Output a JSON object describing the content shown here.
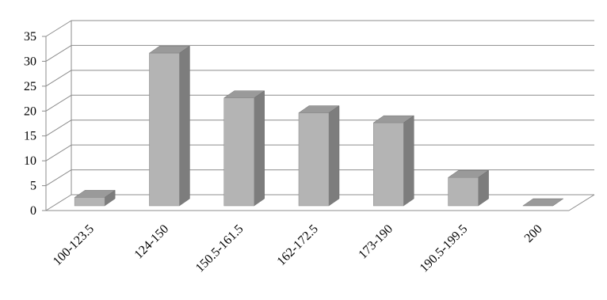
{
  "chart_data": {
    "type": "bar",
    "title": "",
    "xlabel": "",
    "ylabel": "",
    "categories": [
      "100-123.5",
      "124-150",
      "150.5-161.5",
      "162-172.5",
      "173-190",
      "190.5-199.5",
      "200"
    ],
    "values": [
      2,
      31,
      22,
      19,
      17,
      6,
      0
    ],
    "ylim": [
      0,
      35
    ],
    "yticks": [
      0,
      5,
      10,
      15,
      20,
      25,
      30,
      35
    ],
    "grid": true,
    "legend": "none",
    "style": "3d-column",
    "colors": {
      "front": "#b4b4b4",
      "side": "#7d7d7d",
      "top": "#9a9a9a",
      "grid": "#8c8c8c"
    }
  }
}
